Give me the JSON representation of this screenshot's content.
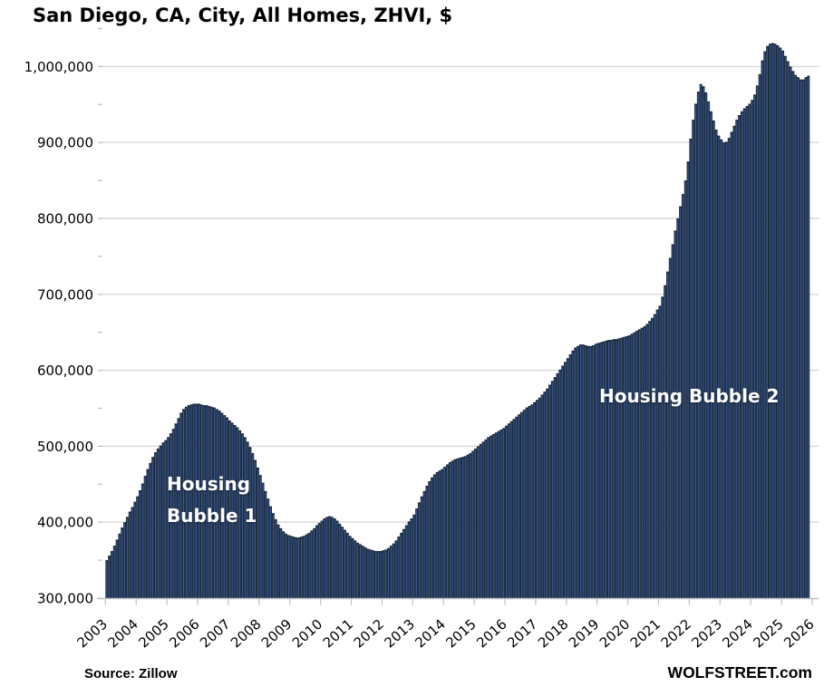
{
  "chart_data": {
    "type": "bar",
    "title": "San Diego, CA, City, All Homes, ZHVI, $",
    "source_note": "Source: Zillow",
    "branding": "WOLFSTREET.com",
    "frequency": "monthly",
    "start": "2003-01",
    "end": "2025-11",
    "ylim": [
      300000,
      1050000
    ],
    "yticks": [
      300000,
      400000,
      500000,
      600000,
      700000,
      800000,
      900000,
      1000000
    ],
    "minor_ytick_step": 50000,
    "x_tick_years": [
      2003,
      2004,
      2005,
      2006,
      2007,
      2008,
      2009,
      2010,
      2011,
      2012,
      2013,
      2014,
      2015,
      2016,
      2017,
      2018,
      2019,
      2020,
      2021,
      2022,
      2023,
      2024,
      2025,
      2026
    ],
    "grid": "horizontal",
    "legend": "none",
    "annotations": [
      {
        "lines": [
          "Housing",
          "Bubble 1"
        ],
        "color": "#ffffff"
      },
      {
        "lines": [
          "Housing Bubble 2"
        ],
        "color": "#ffffff"
      }
    ],
    "colors": {
      "bar_outline": "#1b2a40",
      "bar_core": "#3c5c92",
      "gridline": "#d9d9d9",
      "axis": "#bfbfbf",
      "text": "#000000",
      "background": "#ffffff"
    },
    "values": [
      350000,
      356000,
      362000,
      369000,
      377000,
      385000,
      393000,
      400000,
      407000,
      414000,
      420000,
      427000,
      434000,
      442000,
      451000,
      461000,
      470000,
      478000,
      486000,
      492000,
      497000,
      501000,
      505000,
      508000,
      512000,
      517000,
      523000,
      530000,
      537000,
      544000,
      549000,
      552000,
      554000,
      555000,
      556000,
      556000,
      556000,
      555000,
      554000,
      554000,
      553000,
      552000,
      551000,
      549000,
      547000,
      544000,
      541000,
      538000,
      534000,
      531000,
      528000,
      525000,
      521000,
      517000,
      512000,
      506000,
      499000,
      491000,
      482000,
      472000,
      462000,
      452000,
      441000,
      431000,
      421000,
      412000,
      404000,
      397000,
      392000,
      388000,
      385000,
      383000,
      382000,
      381000,
      380000,
      380000,
      381000,
      382000,
      384000,
      386000,
      389000,
      392000,
      396000,
      399000,
      402000,
      405000,
      407000,
      408000,
      407000,
      405000,
      402000,
      398000,
      394000,
      390000,
      386000,
      382000,
      379000,
      376000,
      373000,
      371000,
      369000,
      367000,
      365000,
      364000,
      363000,
      362000,
      362000,
      362000,
      363000,
      364000,
      366000,
      369000,
      372000,
      376000,
      381000,
      386000,
      391000,
      396000,
      401000,
      405000,
      410000,
      418000,
      426000,
      434000,
      441000,
      448000,
      454000,
      459000,
      463000,
      466000,
      468000,
      470000,
      473000,
      476000,
      479000,
      481000,
      483000,
      484000,
      485000,
      486000,
      487000,
      489000,
      491000,
      494000,
      497000,
      500000,
      503000,
      506000,
      509000,
      512000,
      514000,
      516000,
      518000,
      520000,
      522000,
      524000,
      527000,
      530000,
      533000,
      536000,
      539000,
      542000,
      545000,
      548000,
      551000,
      553000,
      555000,
      558000,
      561000,
      564000,
      568000,
      572000,
      576000,
      581000,
      586000,
      591000,
      596000,
      601000,
      606000,
      611000,
      616000,
      621000,
      626000,
      630000,
      632000,
      634000,
      634000,
      633000,
      632000,
      632000,
      633000,
      635000,
      636000,
      637000,
      638000,
      639000,
      640000,
      640000,
      641000,
      641000,
      642000,
      643000,
      644000,
      645000,
      646000,
      648000,
      650000,
      652000,
      654000,
      656000,
      658000,
      661000,
      665000,
      669000,
      674000,
      680000,
      685000,
      697000,
      712000,
      730000,
      748000,
      766000,
      784000,
      800000,
      816000,
      832000,
      850000,
      875000,
      905000,
      930000,
      951000,
      967000,
      977000,
      974000,
      966000,
      954000,
      941000,
      929000,
      917000,
      909000,
      904000,
      900000,
      901000,
      906000,
      914000,
      922000,
      930000,
      936000,
      941000,
      945000,
      948000,
      951000,
      956000,
      963000,
      975000,
      990000,
      1008000,
      1020000,
      1027000,
      1030000,
      1031000,
      1030000,
      1028000,
      1025000,
      1021000,
      1014000,
      1007000,
      1000000,
      994000,
      989000,
      986000,
      983000,
      983000,
      986000,
      988000
    ]
  }
}
